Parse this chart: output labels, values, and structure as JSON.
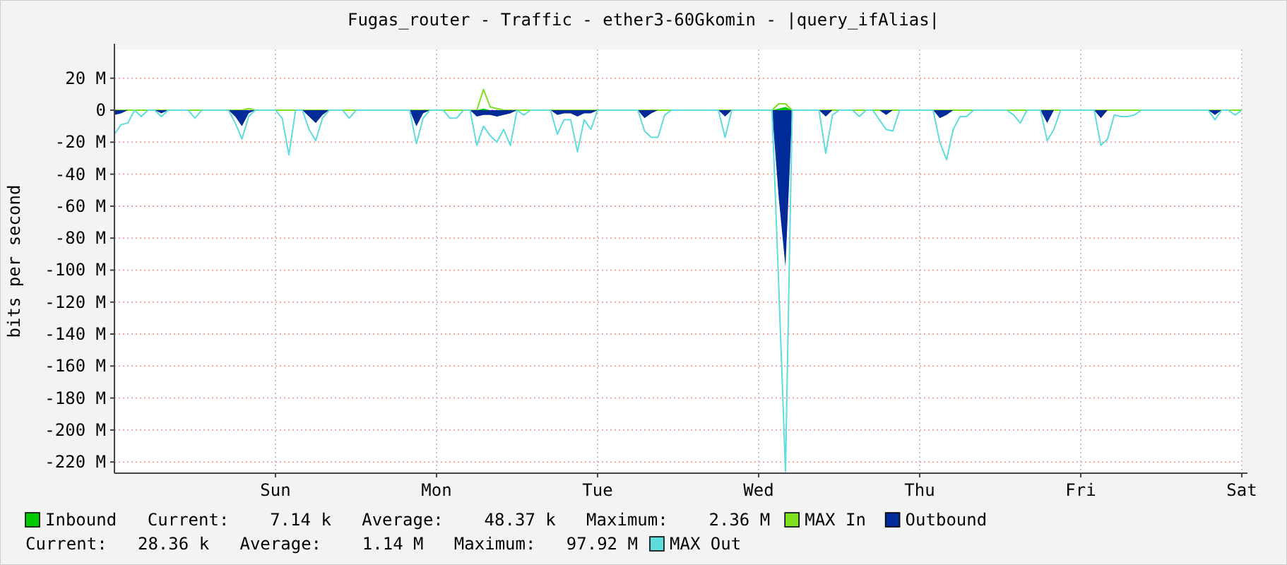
{
  "chart_data": {
    "type": "area",
    "title": "Fugas_router - Traffic - ether3-60Gkomin - |query_ifAlias|",
    "ylabel": "bits per second",
    "categories": [
      null,
      null,
      null,
      null,
      null,
      null,
      null,
      null,
      null,
      null,
      null,
      null,
      null,
      null,
      null,
      null,
      null,
      null,
      null,
      null,
      null,
      null,
      null,
      null,
      "Sun",
      null,
      null,
      null,
      null,
      null,
      null,
      null,
      null,
      null,
      null,
      null,
      null,
      null,
      null,
      null,
      null,
      null,
      null,
      null,
      null,
      null,
      null,
      null,
      "Mon",
      null,
      null,
      null,
      null,
      null,
      null,
      null,
      null,
      null,
      null,
      null,
      null,
      null,
      null,
      null,
      null,
      null,
      null,
      null,
      null,
      null,
      null,
      null,
      "Tue",
      null,
      null,
      null,
      null,
      null,
      null,
      null,
      null,
      null,
      null,
      null,
      null,
      null,
      null,
      null,
      null,
      null,
      null,
      null,
      null,
      null,
      null,
      null,
      "Wed",
      null,
      null,
      null,
      null,
      null,
      null,
      null,
      null,
      null,
      null,
      null,
      null,
      null,
      null,
      null,
      null,
      null,
      null,
      null,
      null,
      null,
      null,
      null,
      "Thu",
      null,
      null,
      null,
      null,
      null,
      null,
      null,
      null,
      null,
      null,
      null,
      null,
      null,
      null,
      null,
      null,
      null,
      null,
      null,
      null,
      null,
      null,
      null,
      "Fri",
      null,
      null,
      null,
      null,
      null,
      null,
      null,
      null,
      null,
      null,
      null,
      null,
      null,
      null,
      null,
      null,
      null,
      null,
      null,
      null,
      null,
      null,
      null,
      "Sat"
    ],
    "ylim": [
      -227,
      38
    ],
    "yticks": [
      {
        "value": 20,
        "label": "20 M"
      },
      0,
      {
        "value": -20,
        "label": "-20 M"
      },
      {
        "value": -40,
        "label": "-40 M"
      },
      {
        "value": -60,
        "label": "-60 M"
      },
      {
        "value": -80,
        "label": "-80 M"
      },
      {
        "value": -100,
        "label": "-100 M"
      },
      {
        "value": -120,
        "label": "-120 M"
      },
      {
        "value": -140,
        "label": "-140 M"
      },
      {
        "value": -160,
        "label": "-160 M"
      },
      {
        "value": -180,
        "label": "-180 M"
      },
      {
        "value": -200,
        "label": "-200 M"
      },
      {
        "value": -220,
        "label": "-220 M"
      }
    ],
    "grid": true,
    "legend": "bottom",
    "annotations": [
      "Current:    7.14 k   Average:    48.37 k   Maximum:    2.36 M",
      "Current:   28.36 k   Average:    1.14 M   Maximum:   97.92 M"
    ],
    "series": [
      {
        "name": "Inbound",
        "type": "area",
        "color": "#00cc00",
        "values": [
          0,
          0,
          0,
          0,
          0,
          0,
          0,
          0,
          0,
          0,
          0,
          0,
          0,
          0,
          0,
          0,
          0,
          0,
          0,
          0,
          0,
          0,
          0,
          0,
          0,
          0,
          0,
          0,
          0,
          0,
          0,
          0,
          0,
          0,
          0,
          0,
          0,
          0,
          0,
          0,
          0,
          0,
          0,
          0,
          0,
          0,
          0,
          0,
          0,
          0,
          0,
          0,
          0,
          0,
          0,
          1,
          0,
          0,
          0,
          0,
          0,
          0,
          0,
          0,
          0,
          0,
          0,
          0,
          0,
          0,
          0,
          0,
          0,
          0,
          0,
          0,
          0,
          0,
          0,
          0,
          0,
          0,
          0,
          0,
          0,
          0,
          0,
          0,
          0,
          0,
          0,
          0,
          0,
          0,
          0,
          0,
          0,
          0,
          0,
          1,
          2,
          0,
          0,
          0,
          0,
          0,
          0,
          0,
          0,
          0,
          0,
          0,
          0,
          0,
          0,
          0,
          0,
          0,
          0,
          0,
          0,
          0,
          0,
          0,
          0,
          0,
          0,
          0,
          0,
          0,
          0,
          0,
          0,
          0,
          0,
          0,
          0,
          0,
          0,
          0,
          0,
          0,
          0,
          0,
          0,
          0,
          0,
          0,
          0,
          0,
          0,
          0,
          0,
          0,
          0,
          0,
          0,
          0,
          0,
          0,
          0,
          0,
          0,
          0,
          0,
          0,
          0,
          0,
          0
        ]
      },
      {
        "name": "MAX In",
        "type": "line",
        "color": "#7ee01e",
        "values": [
          0,
          0,
          0,
          0,
          0,
          0,
          0,
          0,
          0,
          0,
          0,
          0,
          0,
          0,
          0,
          0,
          0,
          0,
          0,
          0,
          1,
          0,
          0,
          0,
          0,
          0,
          0,
          0,
          0,
          0,
          0,
          0,
          0,
          0,
          0,
          0,
          0,
          0,
          0,
          0,
          0,
          0,
          0,
          0,
          0,
          0,
          0,
          0,
          0,
          0,
          0,
          0,
          0,
          0,
          0,
          13,
          2,
          1,
          0,
          0,
          0,
          0,
          0,
          0,
          0,
          0,
          0,
          0,
          0,
          0,
          0,
          0,
          0,
          0,
          0,
          0,
          0,
          0,
          0,
          0,
          0,
          0,
          0,
          0,
          0,
          0,
          0,
          0,
          0,
          0,
          0,
          0,
          0,
          0,
          0,
          0,
          0,
          0,
          0,
          4,
          4,
          0,
          0,
          0,
          0,
          0,
          0,
          0,
          0,
          0,
          0,
          0,
          0,
          0,
          0,
          0,
          0,
          0,
          0,
          0,
          0,
          0,
          0,
          0,
          0,
          0,
          0,
          0,
          0,
          0,
          0,
          0,
          0,
          0,
          0,
          0,
          0,
          0,
          0,
          0,
          0,
          0,
          0,
          0,
          0,
          0,
          0,
          0,
          0,
          0,
          0,
          0,
          0,
          0,
          0,
          0,
          0,
          0,
          0,
          0,
          0,
          0,
          0,
          0,
          0,
          0,
          0,
          0,
          0
        ]
      },
      {
        "name": "Outbound",
        "type": "area",
        "color": "#002a97",
        "values": [
          -3,
          -2,
          0,
          0,
          0,
          0,
          0,
          -2,
          0,
          0,
          0,
          0,
          0,
          0,
          0,
          0,
          0,
          0,
          -4,
          -10,
          -2,
          0,
          0,
          0,
          0,
          0,
          0,
          0,
          0,
          -4,
          -8,
          -3,
          0,
          0,
          0,
          0,
          0,
          0,
          0,
          0,
          0,
          0,
          0,
          0,
          0,
          -10,
          -2,
          0,
          0,
          0,
          0,
          0,
          0,
          0,
          -4,
          -3,
          -3,
          -4,
          -3,
          -2,
          0,
          0,
          0,
          0,
          0,
          0,
          -3,
          -2,
          -2,
          -4,
          -2,
          -2,
          0,
          0,
          0,
          0,
          0,
          0,
          0,
          -5,
          -2,
          0,
          0,
          0,
          0,
          0,
          0,
          0,
          0,
          0,
          0,
          -4,
          0,
          0,
          0,
          0,
          0,
          0,
          0,
          -55,
          -98,
          0,
          0,
          0,
          0,
          0,
          -4,
          0,
          0,
          0,
          0,
          0,
          0,
          0,
          0,
          -3,
          0,
          0,
          0,
          0,
          0,
          0,
          0,
          -5,
          -3,
          0,
          0,
          0,
          0,
          0,
          0,
          0,
          0,
          0,
          0,
          0,
          0,
          0,
          0,
          -8,
          0,
          0,
          0,
          0,
          0,
          0,
          0,
          -5,
          0,
          0,
          0,
          0,
          0,
          0,
          0,
          0,
          0,
          0,
          0,
          0,
          0,
          0,
          0,
          0,
          -3,
          0,
          0,
          0,
          0
        ]
      },
      {
        "name": "MAX Out",
        "type": "line",
        "color": "#5fdcdc",
        "values": [
          -15,
          -9,
          -8,
          0,
          -4,
          0,
          0,
          -4,
          0,
          0,
          0,
          0,
          -5,
          0,
          0,
          0,
          0,
          0,
          -8,
          -18,
          -4,
          0,
          0,
          0,
          0,
          -5,
          -28,
          0,
          0,
          -12,
          -19,
          -5,
          0,
          0,
          0,
          -5,
          0,
          0,
          0,
          0,
          0,
          0,
          0,
          0,
          0,
          -21,
          -5,
          0,
          0,
          0,
          -5,
          -5,
          0,
          0,
          -22,
          -10,
          -16,
          -20,
          -12,
          -22,
          0,
          -3,
          0,
          0,
          0,
          0,
          -15,
          -6,
          -6,
          -26,
          -6,
          -12,
          0,
          0,
          0,
          0,
          0,
          0,
          0,
          -13,
          -17,
          -17,
          -3,
          0,
          0,
          0,
          0,
          0,
          0,
          0,
          0,
          -17,
          0,
          0,
          0,
          0,
          0,
          0,
          0,
          -110,
          -226,
          0,
          0,
          0,
          0,
          0,
          -27,
          -3,
          0,
          0,
          0,
          -4,
          0,
          0,
          -6,
          -12,
          -13,
          0,
          0,
          0,
          0,
          0,
          0,
          -20,
          -31,
          -12,
          -4,
          -4,
          0,
          0,
          0,
          0,
          0,
          0,
          -3,
          -8,
          0,
          0,
          0,
          -19,
          -12,
          0,
          0,
          0,
          0,
          0,
          0,
          -22,
          -18,
          -3,
          -4,
          -4,
          -3,
          0,
          0,
          0,
          0,
          0,
          0,
          0,
          0,
          0,
          0,
          0,
          -6,
          0,
          0,
          -3,
          0
        ]
      }
    ]
  }
}
